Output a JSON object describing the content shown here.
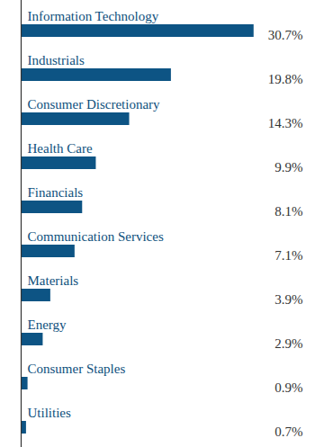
{
  "chart_data": {
    "type": "bar",
    "orientation": "horizontal",
    "categories": [
      "Information Technology",
      "Industrials",
      "Consumer Discretionary",
      "Health Care",
      "Financials",
      "Communication Services",
      "Materials",
      "Energy",
      "Consumer Staples",
      "Utilities"
    ],
    "values": [
      30.7,
      19.8,
      14.3,
      9.9,
      8.1,
      7.1,
      3.9,
      2.9,
      0.9,
      0.7
    ],
    "value_labels": [
      "30.7%",
      "19.8%",
      "14.3%",
      "9.9%",
      "8.1%",
      "7.1%",
      "3.9%",
      "2.9%",
      "0.9%",
      "0.7%"
    ],
    "color": "#0d5484",
    "xlim": [
      0,
      35
    ],
    "data_labels": true,
    "tick_labels": false
  }
}
